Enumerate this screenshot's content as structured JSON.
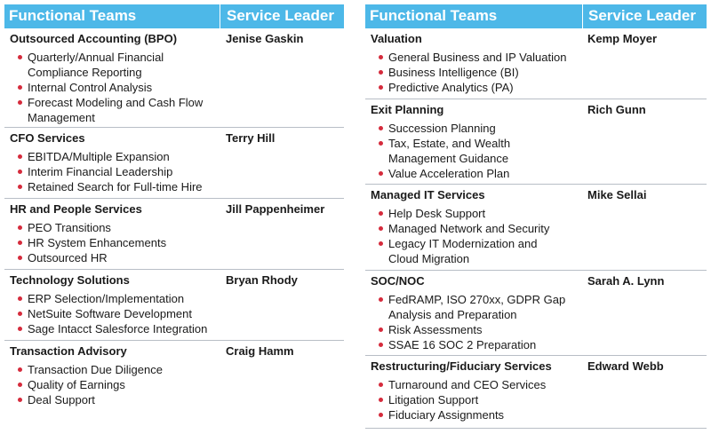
{
  "left_table": {
    "header": {
      "col1": "Functional Teams",
      "col2": "Service Leader"
    },
    "sections": [
      {
        "team": "Outsourced Accounting (BPO)",
        "leader": "Jenise Gaskin",
        "items": [
          "Quarterly/Annual Financial",
          "Compliance Reporting",
          "Internal Control Analysis",
          "Forecast Modeling and Cash Flow",
          "Management"
        ]
      },
      {
        "team": "CFO Services",
        "leader": "Terry Hill",
        "items": [
          "EBITDA/Multiple Expansion",
          "Interim Financial Leadership",
          "Retained Search for Full-time Hire"
        ]
      },
      {
        "team": "HR and People Services",
        "leader": "Jill Pappenheimer",
        "items": [
          "PEO Transitions",
          "HR System Enhancements",
          "Outsourced HR"
        ]
      },
      {
        "team": "Technology Solutions",
        "leader": "Bryan Rhody",
        "items": [
          "ERP Selection/Implementation",
          "NetSuite Software Development",
          "Sage Intacct Salesforce Integration"
        ]
      },
      {
        "team": "Transaction Advisory",
        "leader": "Craig Hamm",
        "items": [
          "Transaction Due Diligence",
          "Quality of Earnings",
          "Deal Support"
        ]
      }
    ]
  },
  "right_table": {
    "header": {
      "col1": "Functional Teams",
      "col2": "Service Leader"
    },
    "sections": [
      {
        "team": "Valuation",
        "leader": "Kemp Moyer",
        "items": [
          "General Business and IP Valuation",
          "Business Intelligence (BI)",
          "Predictive Analytics (PA)"
        ]
      },
      {
        "team": "Exit Planning",
        "leader": "Rich Gunn",
        "items": [
          "Succession Planning",
          "Tax, Estate, and Wealth",
          "Management Guidance",
          "Value Acceleration Plan"
        ]
      },
      {
        "team": "Managed IT Services",
        "leader": "Mike Sellai",
        "items": [
          "Help Desk Support",
          "Managed Network and Security",
          "Legacy IT Modernization and",
          "Cloud Migration"
        ]
      },
      {
        "team": "SOC/NOC",
        "leader": "Sarah A. Lynn",
        "items": [
          "FedRAMP, ISO 270xx, GDPR Gap",
          "Analysis and Preparation",
          "Risk Assessments",
          "SSAE 16 SOC 2 Preparation"
        ]
      },
      {
        "team": "Restructuring/Fiduciary Services",
        "leader": "Edward Webb",
        "items": [
          "Turnaround and CEO Services",
          "Litigation Support",
          "Fiduciary Assignments"
        ]
      }
    ]
  }
}
